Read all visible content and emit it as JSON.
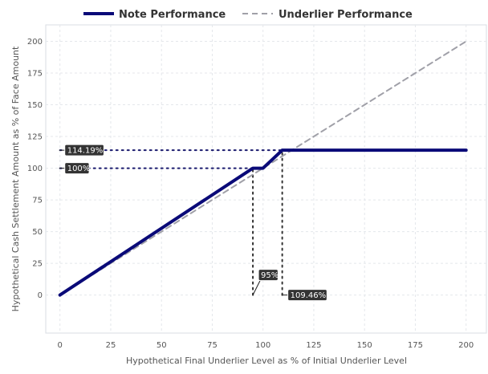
{
  "chart_data": {
    "type": "line",
    "xlabel": "Hypothetical Final Underlier Level as % of Initial Underlier Level",
    "ylabel": "Hypothetical Cash Settlement Amount as % of Face Amount",
    "xlim": [
      -7,
      210
    ],
    "ylim": [
      -30,
      213
    ],
    "x_ticks": [
      0,
      25,
      50,
      75,
      100,
      125,
      150,
      175,
      200
    ],
    "y_ticks": [
      0,
      25,
      50,
      75,
      100,
      125,
      150,
      175,
      200
    ],
    "grid": true,
    "legend_position": "top",
    "series": [
      {
        "name": "Note Performance",
        "color": "#0a0a78",
        "style": "solid",
        "x": [
          0,
          95,
          100,
          109.46,
          200
        ],
        "y": [
          0,
          100,
          100,
          114.19,
          114.19
        ]
      },
      {
        "name": "Underlier Performance",
        "color": "#a0a0a8",
        "style": "dashed",
        "x": [
          0,
          200
        ],
        "y": [
          0,
          200
        ]
      }
    ],
    "annotations": [
      {
        "label": "114.19%",
        "axis": "y",
        "value": 114.19,
        "x_end": 109.46
      },
      {
        "label": "100%",
        "axis": "y",
        "value": 100,
        "x_end": 95
      },
      {
        "label": "95%",
        "axis": "x",
        "value": 95,
        "y_end": 100
      },
      {
        "label": "109.46%",
        "axis": "x",
        "value": 109.46,
        "y_end": 114.19
      }
    ]
  }
}
